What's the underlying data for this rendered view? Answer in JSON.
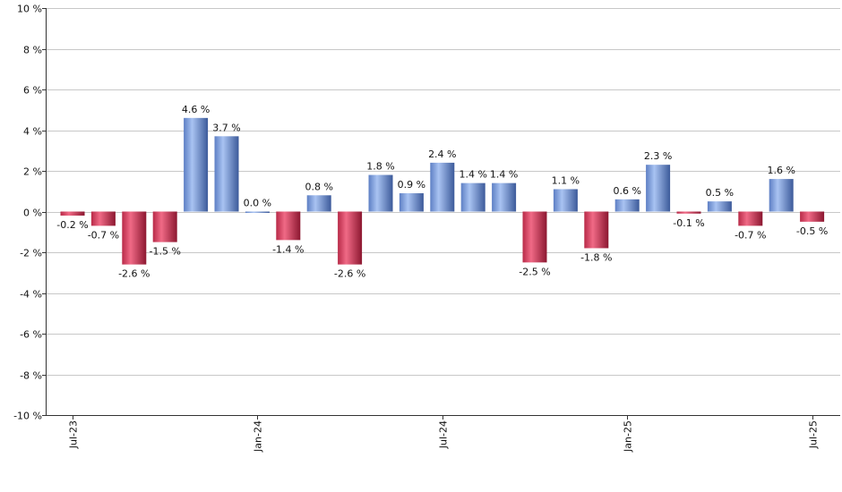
{
  "chart_data": {
    "type": "bar",
    "x": [
      "Jul-23",
      "Aug-23",
      "Sep-23",
      "Oct-23",
      "Nov-23",
      "Dec-23",
      "Jan-24",
      "Feb-24",
      "Mar-24",
      "Apr-24",
      "May-24",
      "Jun-24",
      "Jul-24",
      "Aug-24",
      "Sep-24",
      "Oct-24",
      "Nov-24",
      "Dec-24",
      "Jan-25",
      "Feb-25",
      "Mar-25",
      "Apr-25",
      "May-25",
      "Jun-25",
      "Jul-25"
    ],
    "values": [
      -0.2,
      -0.7,
      -2.6,
      -1.5,
      4.6,
      3.7,
      0.0,
      -1.4,
      0.8,
      -2.6,
      1.8,
      0.9,
      2.4,
      1.4,
      1.4,
      -2.5,
      1.1,
      -1.8,
      0.6,
      2.3,
      -0.1,
      0.5,
      -0.7,
      1.6,
      -0.5
    ],
    "value_labels": [
      "-0.2 %",
      "-0.7 %",
      "-2.6 %",
      "-1.5 %",
      "4.6 %",
      "3.7 %",
      "0.0 %",
      "-1.4 %",
      "0.8 %",
      "-2.6 %",
      "1.8 %",
      "0.9 %",
      "2.4 %",
      "1.4 %",
      "1.4 %",
      "-2.5 %",
      "1.1 %",
      "-1.8 %",
      "0.6 %",
      "2.3 %",
      "-0.1 %",
      "0.5 %",
      "-0.7 %",
      "1.6 %",
      "-0.5 %"
    ],
    "x_tick_labels": [
      {
        "index": 0,
        "label": "Jul-23"
      },
      {
        "index": 6,
        "label": "Jan-24"
      },
      {
        "index": 12,
        "label": "Jul-24"
      },
      {
        "index": 18,
        "label": "Jan-25"
      },
      {
        "index": 24,
        "label": "Jul-25"
      }
    ],
    "y_ticks": [
      10,
      8,
      6,
      4,
      2,
      0,
      -2,
      -4,
      -6,
      -8,
      -10
    ],
    "y_tick_labels": [
      "10 %",
      "8 %",
      "6 %",
      "4 %",
      "2 %",
      "0 %",
      "-2 %",
      "-4 %",
      "-6 %",
      "-8 %",
      "-10 %"
    ],
    "ylim": [
      -10,
      10
    ],
    "grid": true,
    "legend": "none",
    "title": "",
    "xlabel": "",
    "ylabel": "",
    "colors": {
      "positive": "#7b9fe0",
      "positive_dark": "#3f5f9e",
      "negative": "#d9405e",
      "negative_dark": "#8f1a32",
      "grid": "#c8c8c8",
      "axis": "#333333"
    }
  }
}
